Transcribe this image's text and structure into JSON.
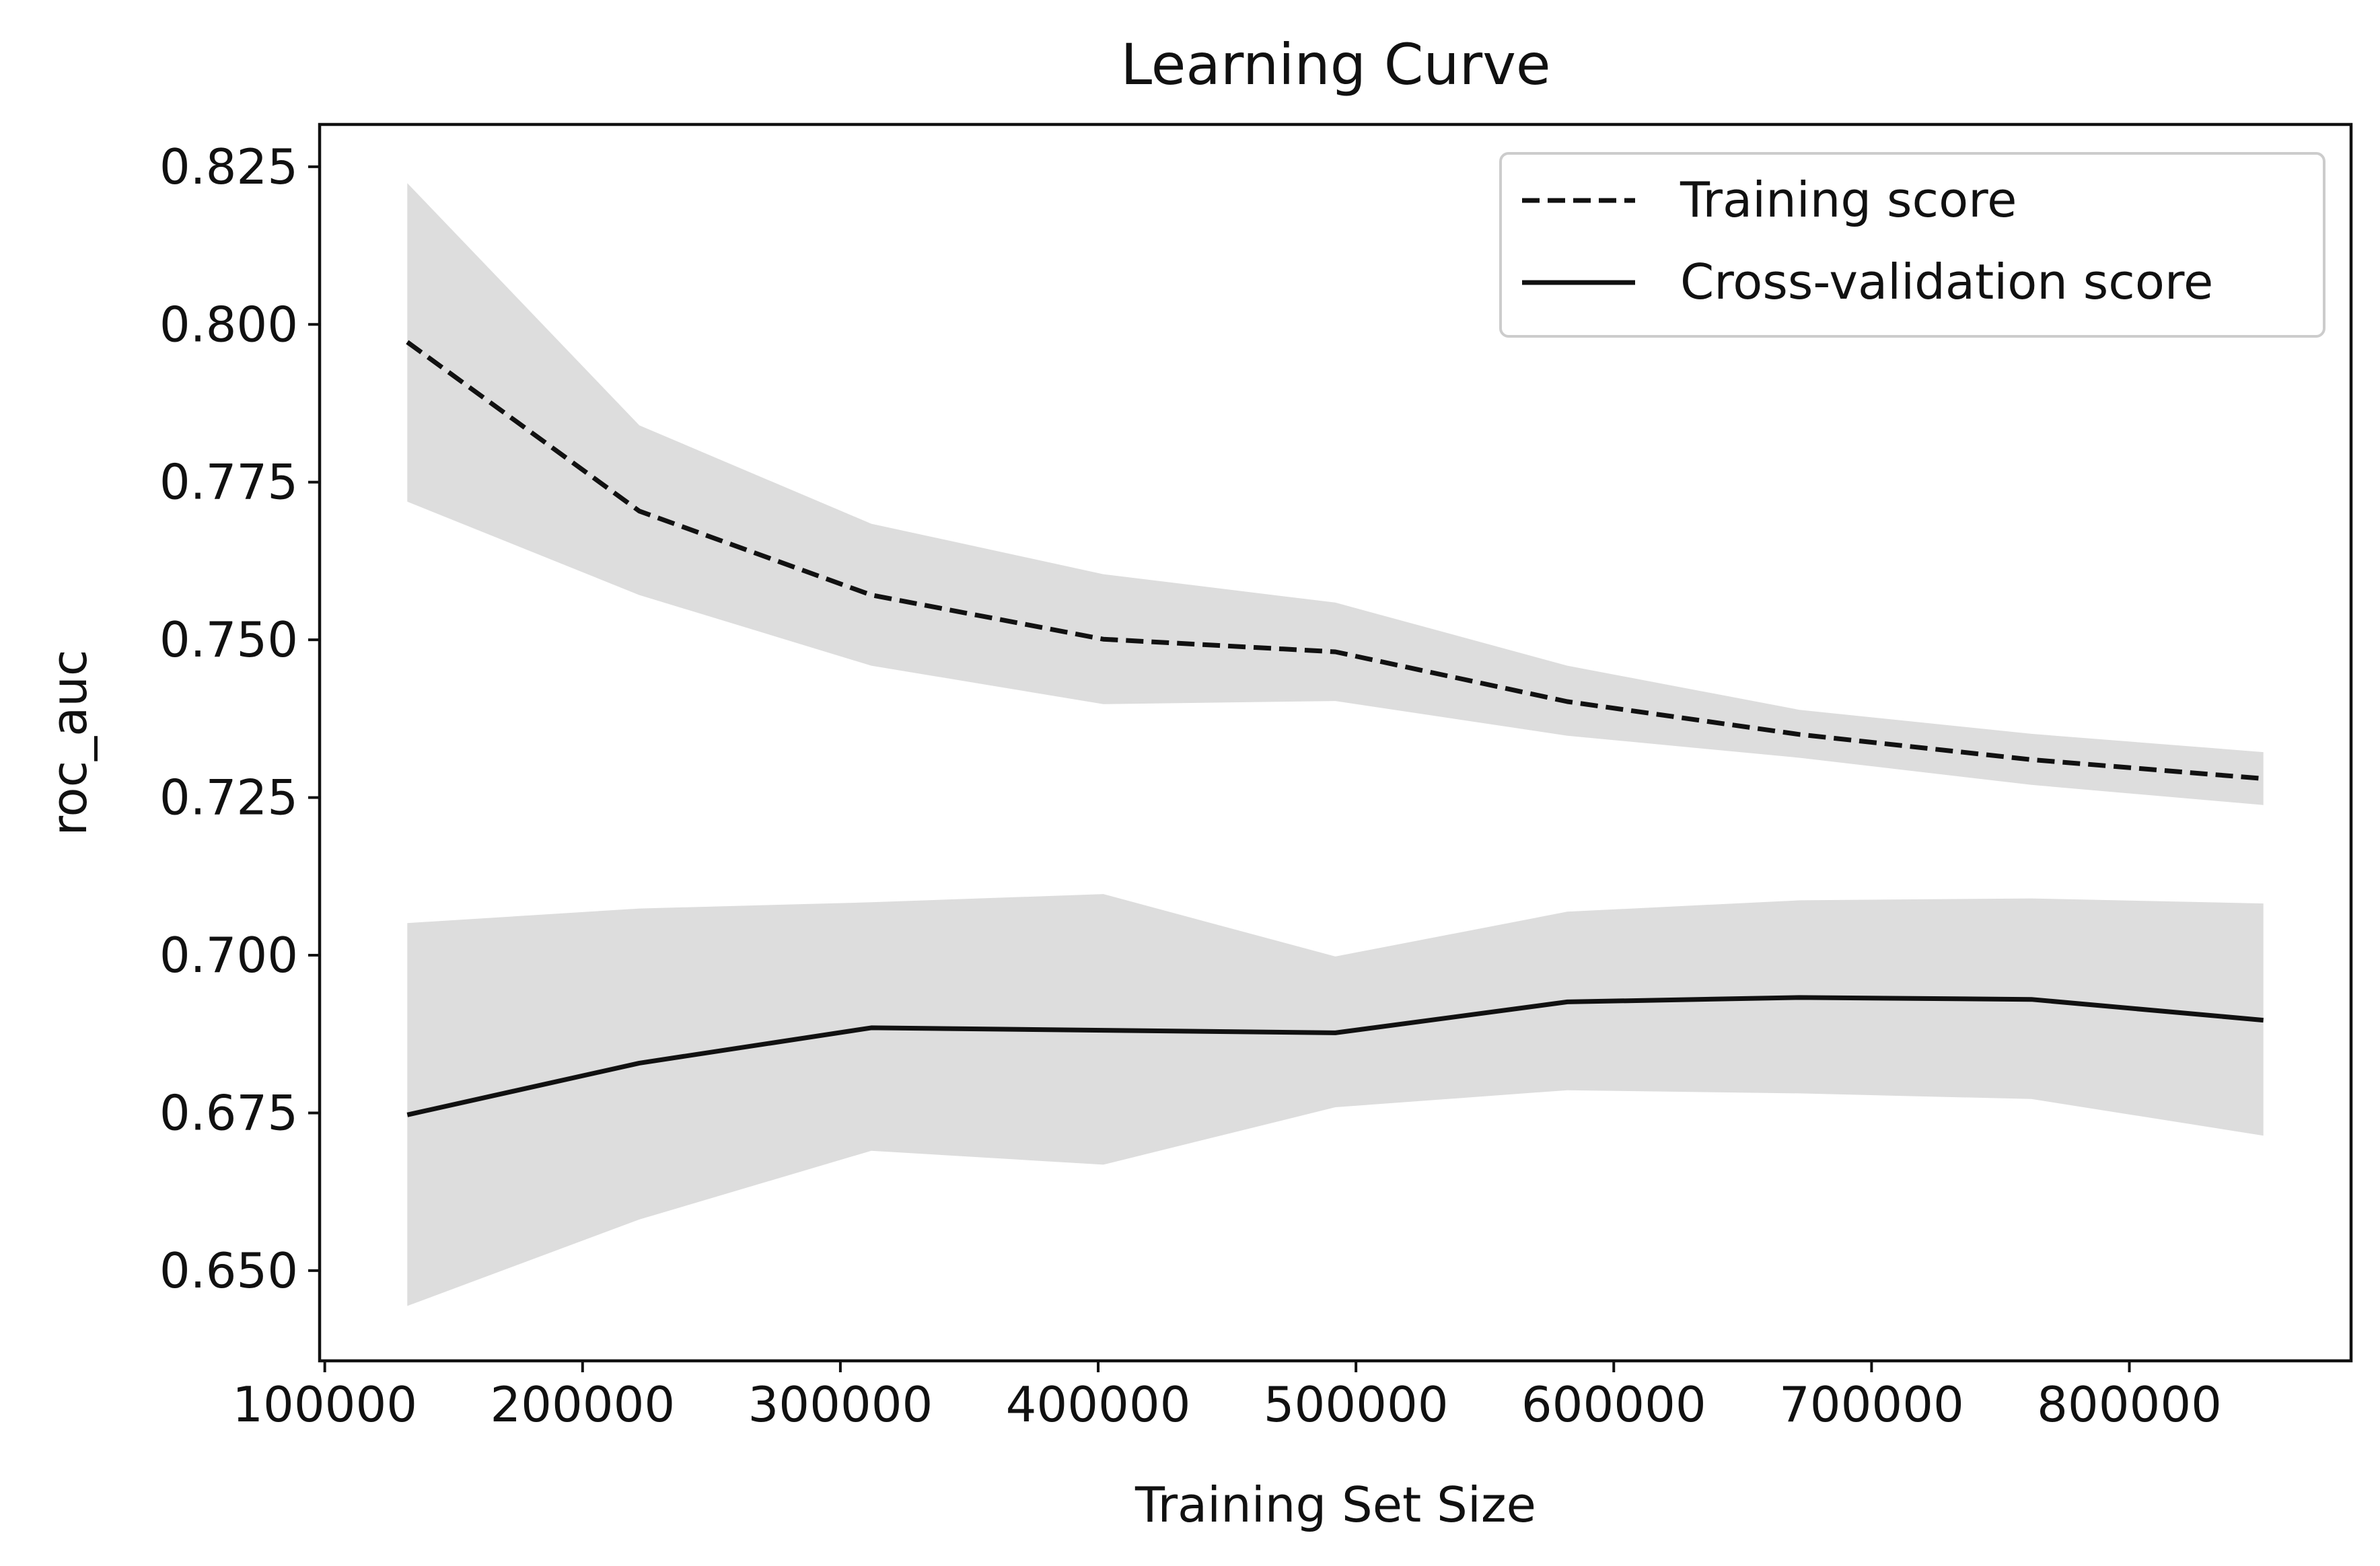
{
  "chart_data": {
    "type": "line",
    "title": "Learning Curve",
    "xlabel": "Training Set Size",
    "ylabel": "roc_auc",
    "x": [
      132000,
      222000,
      312000,
      402000,
      492000,
      582000,
      672000,
      762000,
      852000
    ],
    "xlim": [
      98000,
      886000
    ],
    "ylim": [
      0.6357,
      0.8317
    ],
    "xticks": [
      100000,
      200000,
      300000,
      400000,
      500000,
      600000,
      700000,
      800000
    ],
    "xtick_labels": [
      "100000",
      "200000",
      "300000",
      "400000",
      "500000",
      "600000",
      "700000",
      "800000"
    ],
    "yticks": [
      0.65,
      0.675,
      0.7,
      0.725,
      0.75,
      0.775,
      0.8,
      0.825
    ],
    "ytick_labels": [
      "0.650",
      "0.675",
      "0.700",
      "0.725",
      "0.750",
      "0.775",
      "0.800",
      "0.825"
    ],
    "grid": false,
    "legend_position": "top-right",
    "series": [
      {
        "name": "Training score",
        "style": "dashed",
        "color": "#111111",
        "values": [
          0.7972,
          0.7704,
          0.7571,
          0.7501,
          0.7481,
          0.7402,
          0.735,
          0.731,
          0.728
        ],
        "band_upper": [
          0.8224,
          0.784,
          0.7684,
          0.7604,
          0.7559,
          0.7459,
          0.7389,
          0.7351,
          0.7322
        ],
        "band_lower": [
          0.7719,
          0.7571,
          0.7459,
          0.7398,
          0.7403,
          0.7348,
          0.7313,
          0.727,
          0.7238
        ]
      },
      {
        "name": "Cross-validation score",
        "style": "solid",
        "color": "#111111",
        "values": [
          0.6747,
          0.6829,
          0.6885,
          0.6881,
          0.6877,
          0.6926,
          0.6933,
          0.693,
          0.6897
        ],
        "band_upper": [
          0.7051,
          0.7074,
          0.7084,
          0.7097,
          0.6998,
          0.7069,
          0.7087,
          0.709,
          0.7082
        ],
        "band_lower": [
          0.6444,
          0.6581,
          0.669,
          0.6668,
          0.6759,
          0.6786,
          0.6781,
          0.6772,
          0.6714
        ]
      }
    ],
    "band_color": "#dddddd"
  }
}
